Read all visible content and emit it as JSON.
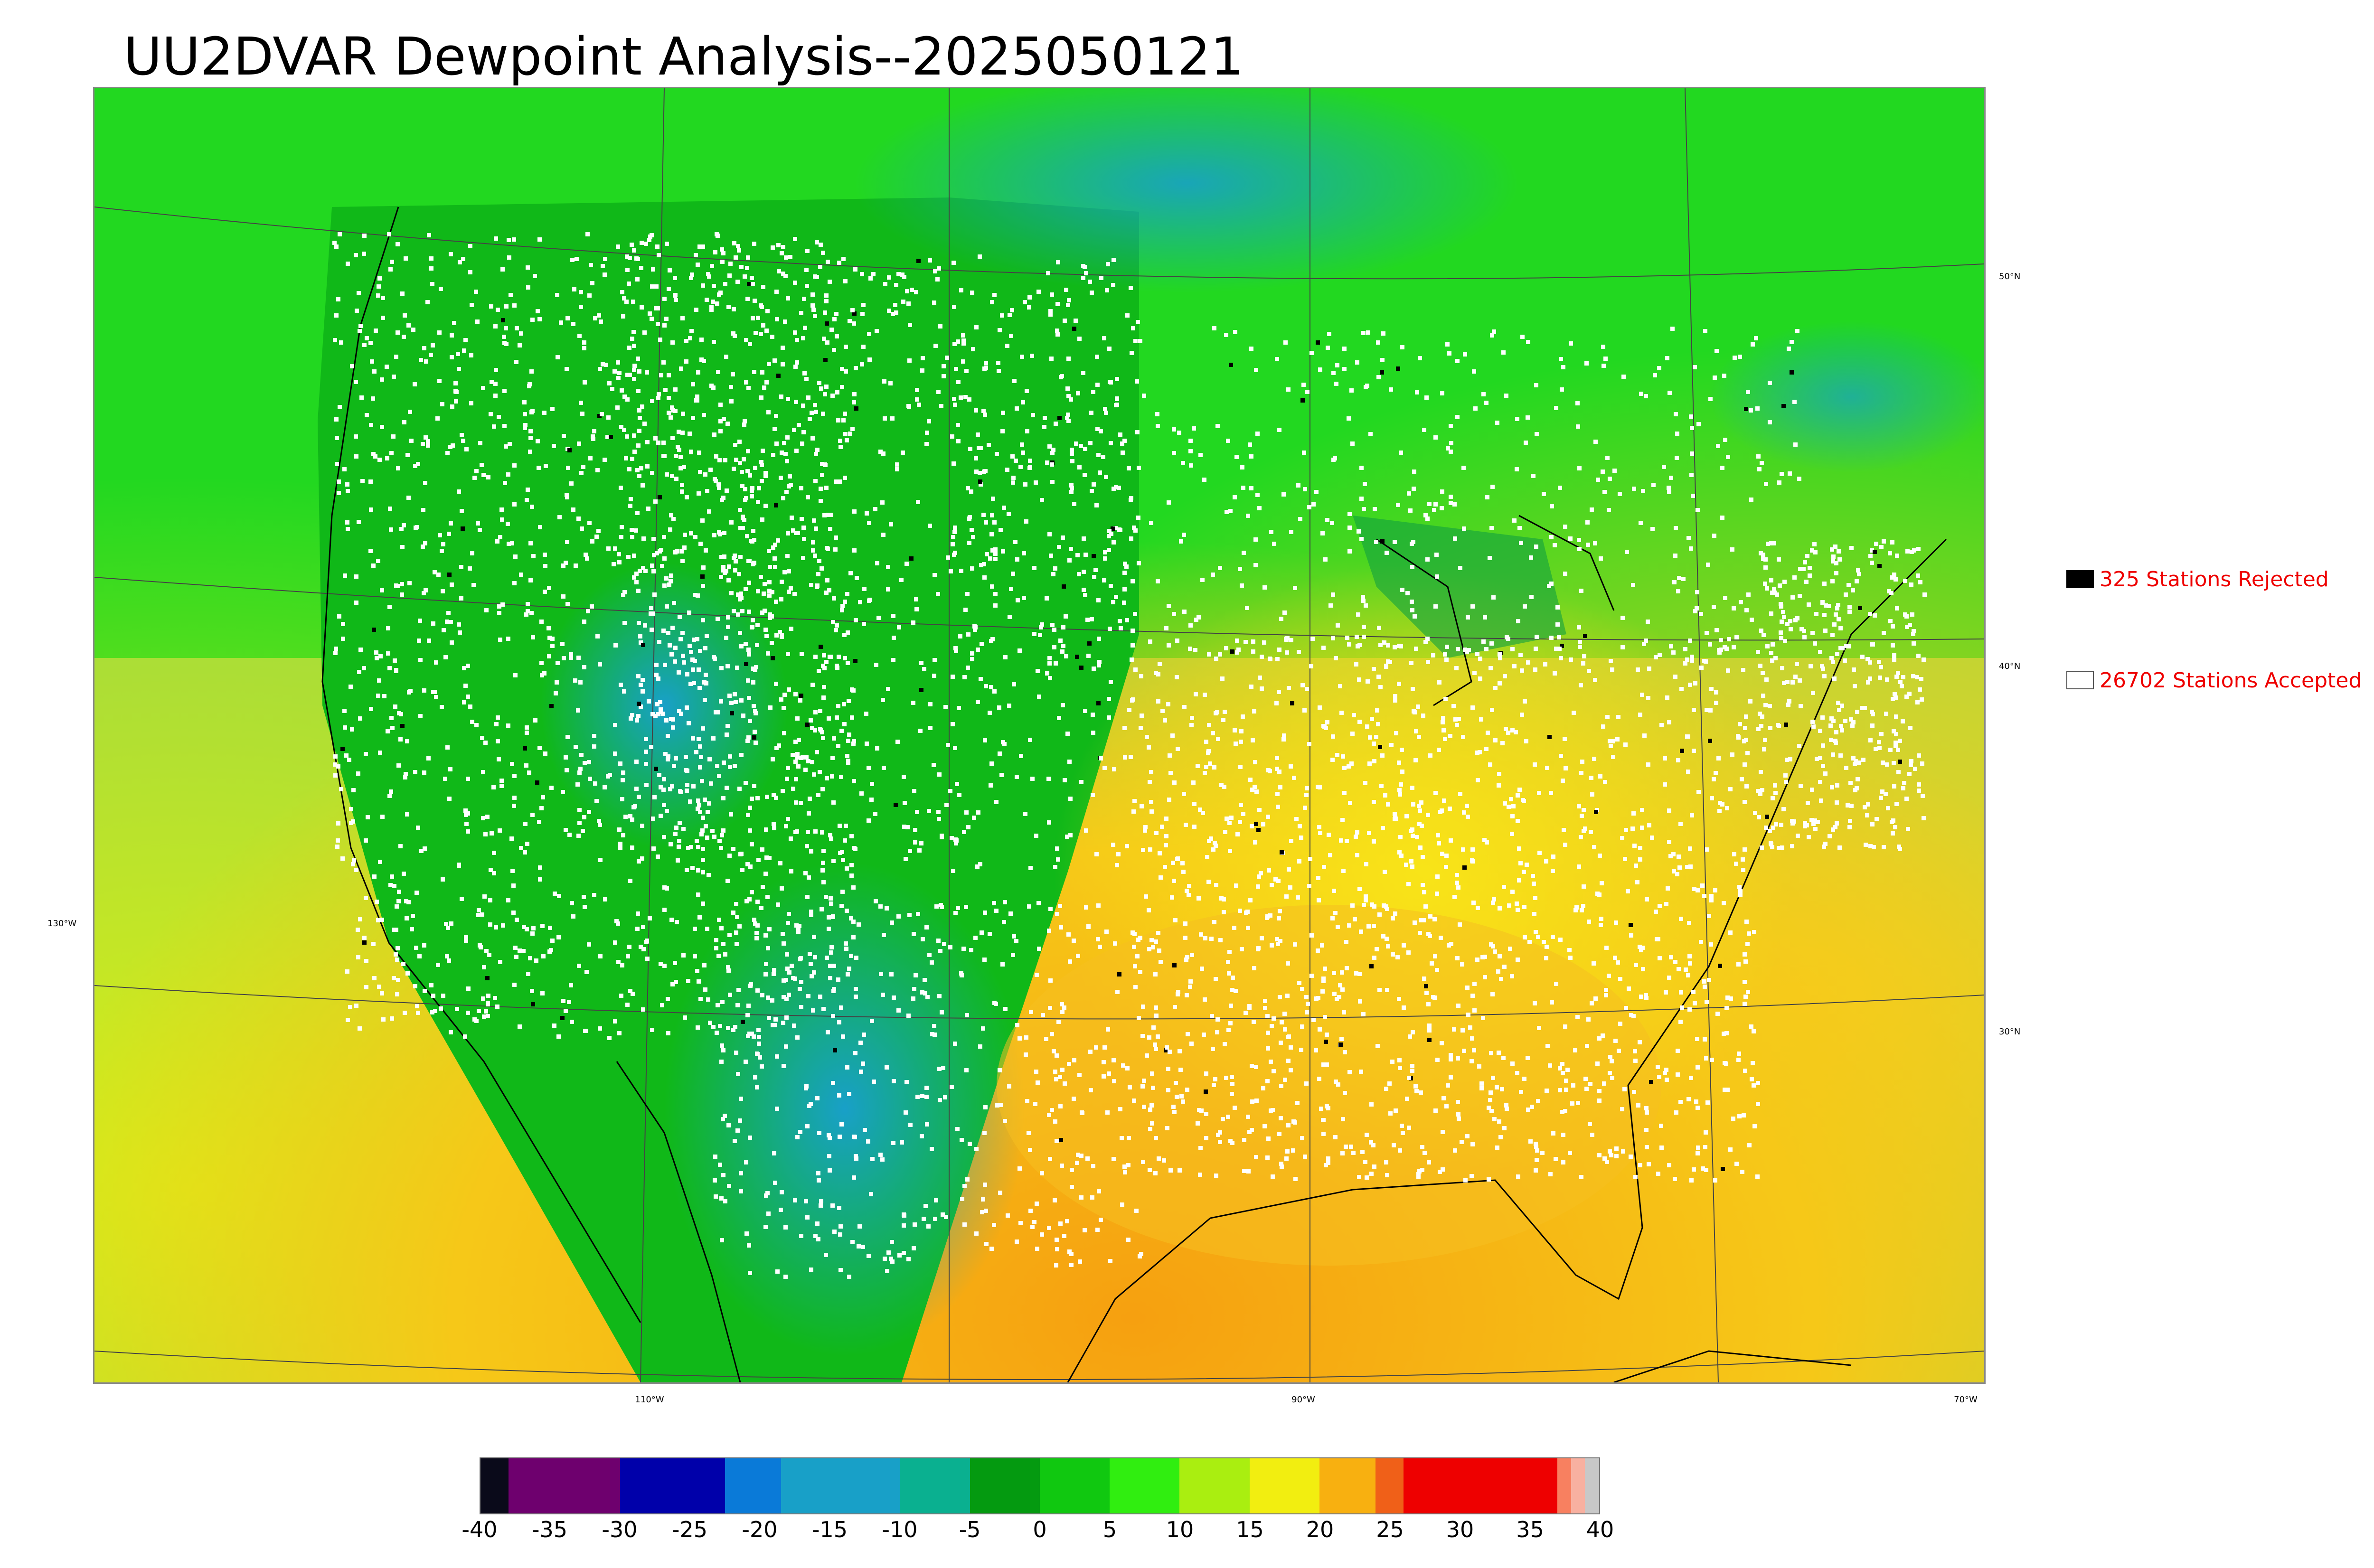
{
  "title": "UU2DVAR Dewpoint Analysis--2025050121",
  "map": {
    "type": "analysis-map",
    "region": "CONUS",
    "lon_labels": [
      "110°W",
      "90°W",
      "70°W"
    ],
    "lat_labels_right": [
      "50°N",
      "40°N",
      "30°N"
    ],
    "lat_labels_left": [
      "130°W"
    ],
    "icons": [
      "coastline-lines",
      "state-borders",
      "graticule-lines",
      "station-dots"
    ]
  },
  "legend": {
    "rejected": {
      "label": "325 Stations Rejected",
      "swatch_color": "#000000",
      "count": 325
    },
    "accepted": {
      "label": "26702 Stations Accepted",
      "swatch_color": "#ffffff",
      "count": 26702
    }
  },
  "colorbar": {
    "min": -40,
    "max": 40,
    "tick_labels": [
      "-40",
      "-35",
      "-30",
      "-25",
      "-20",
      "-15",
      "-10",
      "-5",
      "0",
      "5",
      "10",
      "15",
      "20",
      "25",
      "30",
      "35",
      "40"
    ],
    "stops": [
      {
        "from": -40,
        "to": -38,
        "color": "#0a0a1a"
      },
      {
        "from": -38,
        "to": -30,
        "color": "#6e006e"
      },
      {
        "from": -30,
        "to": -22.5,
        "color": "#0000aa"
      },
      {
        "from": -22.5,
        "to": -18.5,
        "color": "#0a7ad8"
      },
      {
        "from": -18.5,
        "to": -10,
        "color": "#18a0c8"
      },
      {
        "from": -10,
        "to": -5,
        "color": "#0ab090"
      },
      {
        "from": -5,
        "to": 0,
        "color": "#049a10"
      },
      {
        "from": 0,
        "to": 5,
        "color": "#10c810"
      },
      {
        "from": 5,
        "to": 10,
        "color": "#30ee10"
      },
      {
        "from": 10,
        "to": 15,
        "color": "#aaee10"
      },
      {
        "from": 15,
        "to": 20,
        "color": "#f2ee10"
      },
      {
        "from": 20,
        "to": 24,
        "color": "#f8b010"
      },
      {
        "from": 24,
        "to": 26,
        "color": "#f06018"
      },
      {
        "from": 26,
        "to": 37,
        "color": "#ee0000"
      },
      {
        "from": 37,
        "to": 38,
        "color": "#f88060"
      },
      {
        "from": 38,
        "to": 39,
        "color": "#f8b0a0"
      },
      {
        "from": 39,
        "to": 40,
        "color": "#c8c8c8"
      }
    ]
  }
}
